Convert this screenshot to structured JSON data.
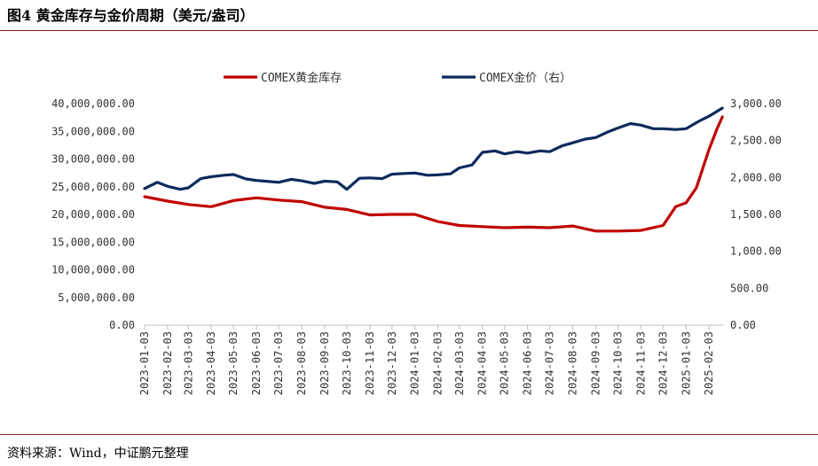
{
  "figure": {
    "title": "图4  黄金库存与金价周期（美元/盎司）",
    "source": "资料来源：Wind，中证鹏元整理"
  },
  "colors": {
    "inventory": "#c00000",
    "price": "#0d2a5c",
    "rule": "#8b1a1a",
    "axis": "#bfbfbf"
  },
  "chart_data": {
    "type": "line",
    "title": "",
    "legend": {
      "position": "top-center",
      "entries": [
        "COMEX黄金库存",
        "COMEX金价（右）"
      ]
    },
    "x_tick_labels": [
      "2023-01-03",
      "2023-02-03",
      "2023-03-03",
      "2023-04-03",
      "2023-05-03",
      "2023-06-03",
      "2023-07-03",
      "2023-08-03",
      "2023-09-03",
      "2023-10-03",
      "2023-11-03",
      "2023-12-03",
      "2024-01-03",
      "2024-02-03",
      "2024-03-03",
      "2024-04-03",
      "2024-05-03",
      "2024-06-03",
      "2024-07-03",
      "2024-08-03",
      "2024-09-03",
      "2024-10-03",
      "2024-11-03",
      "2024-12-03",
      "2025-01-03",
      "2025-02-03"
    ],
    "y_left": {
      "range": [
        0,
        40000000
      ],
      "tick_labels": [
        "0.00",
        "5,000,000.00",
        "10,000,000.00",
        "15,000,000.00",
        "20,000,000.00",
        "25,000,000.00",
        "30,000,000.00",
        "35,000,000.00",
        "40,000,000.00"
      ]
    },
    "y_right": {
      "range": [
        0,
        3000
      ],
      "tick_labels": [
        "0.00",
        "500.00",
        "1,000.00",
        "1,500.00",
        "2,000.00",
        "2,500.00",
        "3,000.00"
      ]
    },
    "grid": false,
    "series": [
      {
        "name": "COMEX黄金库存",
        "axis": "left",
        "x": [
          "2023-01-03",
          "2023-02-03",
          "2023-03-03",
          "2023-04-03",
          "2023-05-03",
          "2023-06-03",
          "2023-07-03",
          "2023-08-03",
          "2023-09-03",
          "2023-10-03",
          "2023-11-03",
          "2023-12-03",
          "2024-01-03",
          "2024-02-03",
          "2024-03-03",
          "2024-04-03",
          "2024-05-03",
          "2024-06-03",
          "2024-07-03",
          "2024-08-03",
          "2024-09-03",
          "2024-10-03",
          "2024-11-03",
          "2024-12-03",
          "2024-12-20",
          "2025-01-03",
          "2025-01-17",
          "2025-02-03",
          "2025-02-14",
          "2025-02-21"
        ],
        "values": [
          23200000,
          22400000,
          21800000,
          21400000,
          22500000,
          23000000,
          22600000,
          22300000,
          21300000,
          20900000,
          19900000,
          20000000,
          20000000,
          18700000,
          18000000,
          17800000,
          17600000,
          17700000,
          17600000,
          17900000,
          17000000,
          17000000,
          17100000,
          18000000,
          21400000,
          22100000,
          24800000,
          31700000,
          35500000,
          37600000
        ]
      },
      {
        "name": "COMEX金价（右）",
        "axis": "right",
        "x": [
          "2023-01-03",
          "2023-01-20",
          "2023-02-03",
          "2023-02-20",
          "2023-03-03",
          "2023-03-20",
          "2023-04-03",
          "2023-04-20",
          "2023-05-03",
          "2023-05-20",
          "2023-06-03",
          "2023-06-20",
          "2023-07-03",
          "2023-07-20",
          "2023-08-03",
          "2023-08-20",
          "2023-09-03",
          "2023-09-20",
          "2023-10-03",
          "2023-10-20",
          "2023-11-03",
          "2023-11-20",
          "2023-12-03",
          "2023-12-20",
          "2024-01-03",
          "2024-01-20",
          "2024-02-03",
          "2024-02-20",
          "2024-03-03",
          "2024-03-20",
          "2024-04-03",
          "2024-04-20",
          "2024-05-03",
          "2024-05-20",
          "2024-06-03",
          "2024-06-20",
          "2024-07-03",
          "2024-07-20",
          "2024-08-03",
          "2024-08-20",
          "2024-09-03",
          "2024-09-20",
          "2024-10-03",
          "2024-10-20",
          "2024-11-03",
          "2024-11-20",
          "2024-12-03",
          "2024-12-20",
          "2025-01-03",
          "2025-01-20",
          "2025-02-03",
          "2025-02-21"
        ],
        "values": [
          1850,
          1935,
          1880,
          1840,
          1860,
          1985,
          2010,
          2030,
          2040,
          1980,
          1960,
          1945,
          1935,
          1975,
          1955,
          1920,
          1950,
          1940,
          1840,
          1990,
          1995,
          1985,
          2045,
          2055,
          2060,
          2030,
          2035,
          2050,
          2130,
          2170,
          2340,
          2360,
          2320,
          2350,
          2330,
          2360,
          2350,
          2430,
          2470,
          2520,
          2540,
          2620,
          2670,
          2730,
          2710,
          2660,
          2660,
          2650,
          2660,
          2760,
          2830,
          2940
        ]
      }
    ]
  }
}
